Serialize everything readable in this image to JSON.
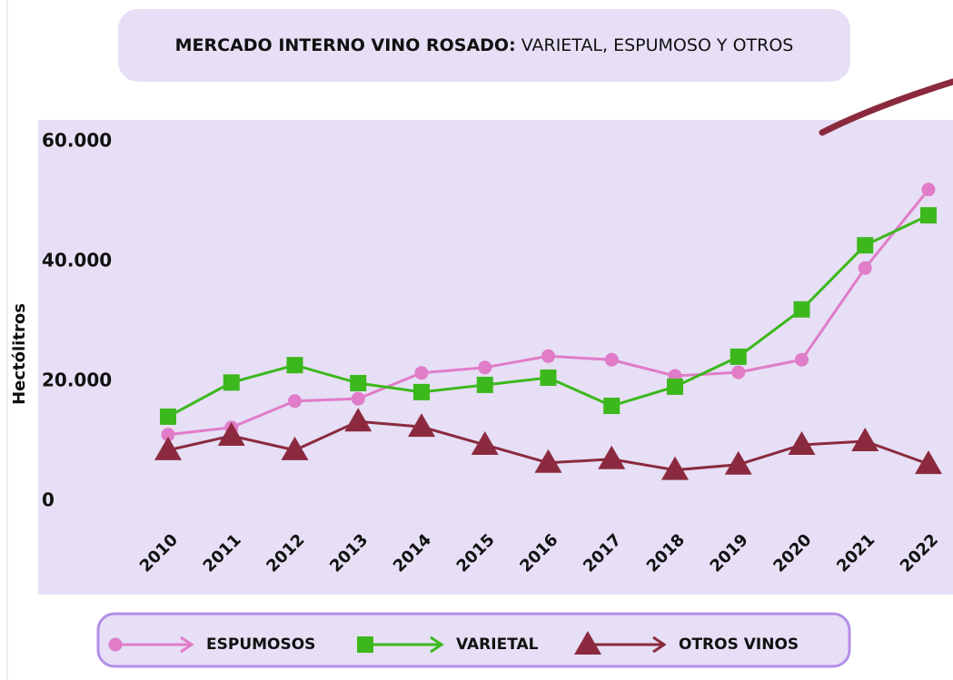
{
  "chart_data": {
    "type": "line",
    "title": [
      "MERCADO INTERNO VINO ROSADO:",
      "VARIETAL, ESPUMOSO Y OTROS"
    ],
    "y_label": "Hectólitros",
    "categories": [
      "2010",
      "2011",
      "2012",
      "2013",
      "2014",
      "2015",
      "2016",
      "2017",
      "2018",
      "2019",
      "2020",
      "2021",
      "2022"
    ],
    "series": [
      {
        "name": "ESPUMOSOS",
        "color": "#e07cc8",
        "marker": "circle",
        "values": [
          11100,
          12300,
          16700,
          17100,
          21400,
          22300,
          24200,
          23600,
          20900,
          21500,
          23600,
          38900,
          52000
        ]
      },
      {
        "name": "VARIETAL",
        "color": "#3cb81c",
        "marker": "square",
        "values": [
          14100,
          19800,
          22700,
          19700,
          18200,
          19400,
          20600,
          15900,
          19100,
          24100,
          32000,
          42700,
          47700
        ]
      },
      {
        "name": "OTROS VINOS",
        "color": "#8b2a3e",
        "marker": "triangle",
        "values": [
          8500,
          10900,
          8500,
          13300,
          12400,
          9400,
          6400,
          7000,
          5200,
          6100,
          9400,
          10000,
          6200
        ]
      }
    ],
    "ylim": [
      0,
      60000
    ],
    "yticks": [
      0,
      {
        "value": 20000,
        "label": "20.000"
      },
      {
        "value": 40000,
        "label": "40.000"
      },
      {
        "value": 60000,
        "label": "60.000"
      }
    ],
    "grid": false
  }
}
